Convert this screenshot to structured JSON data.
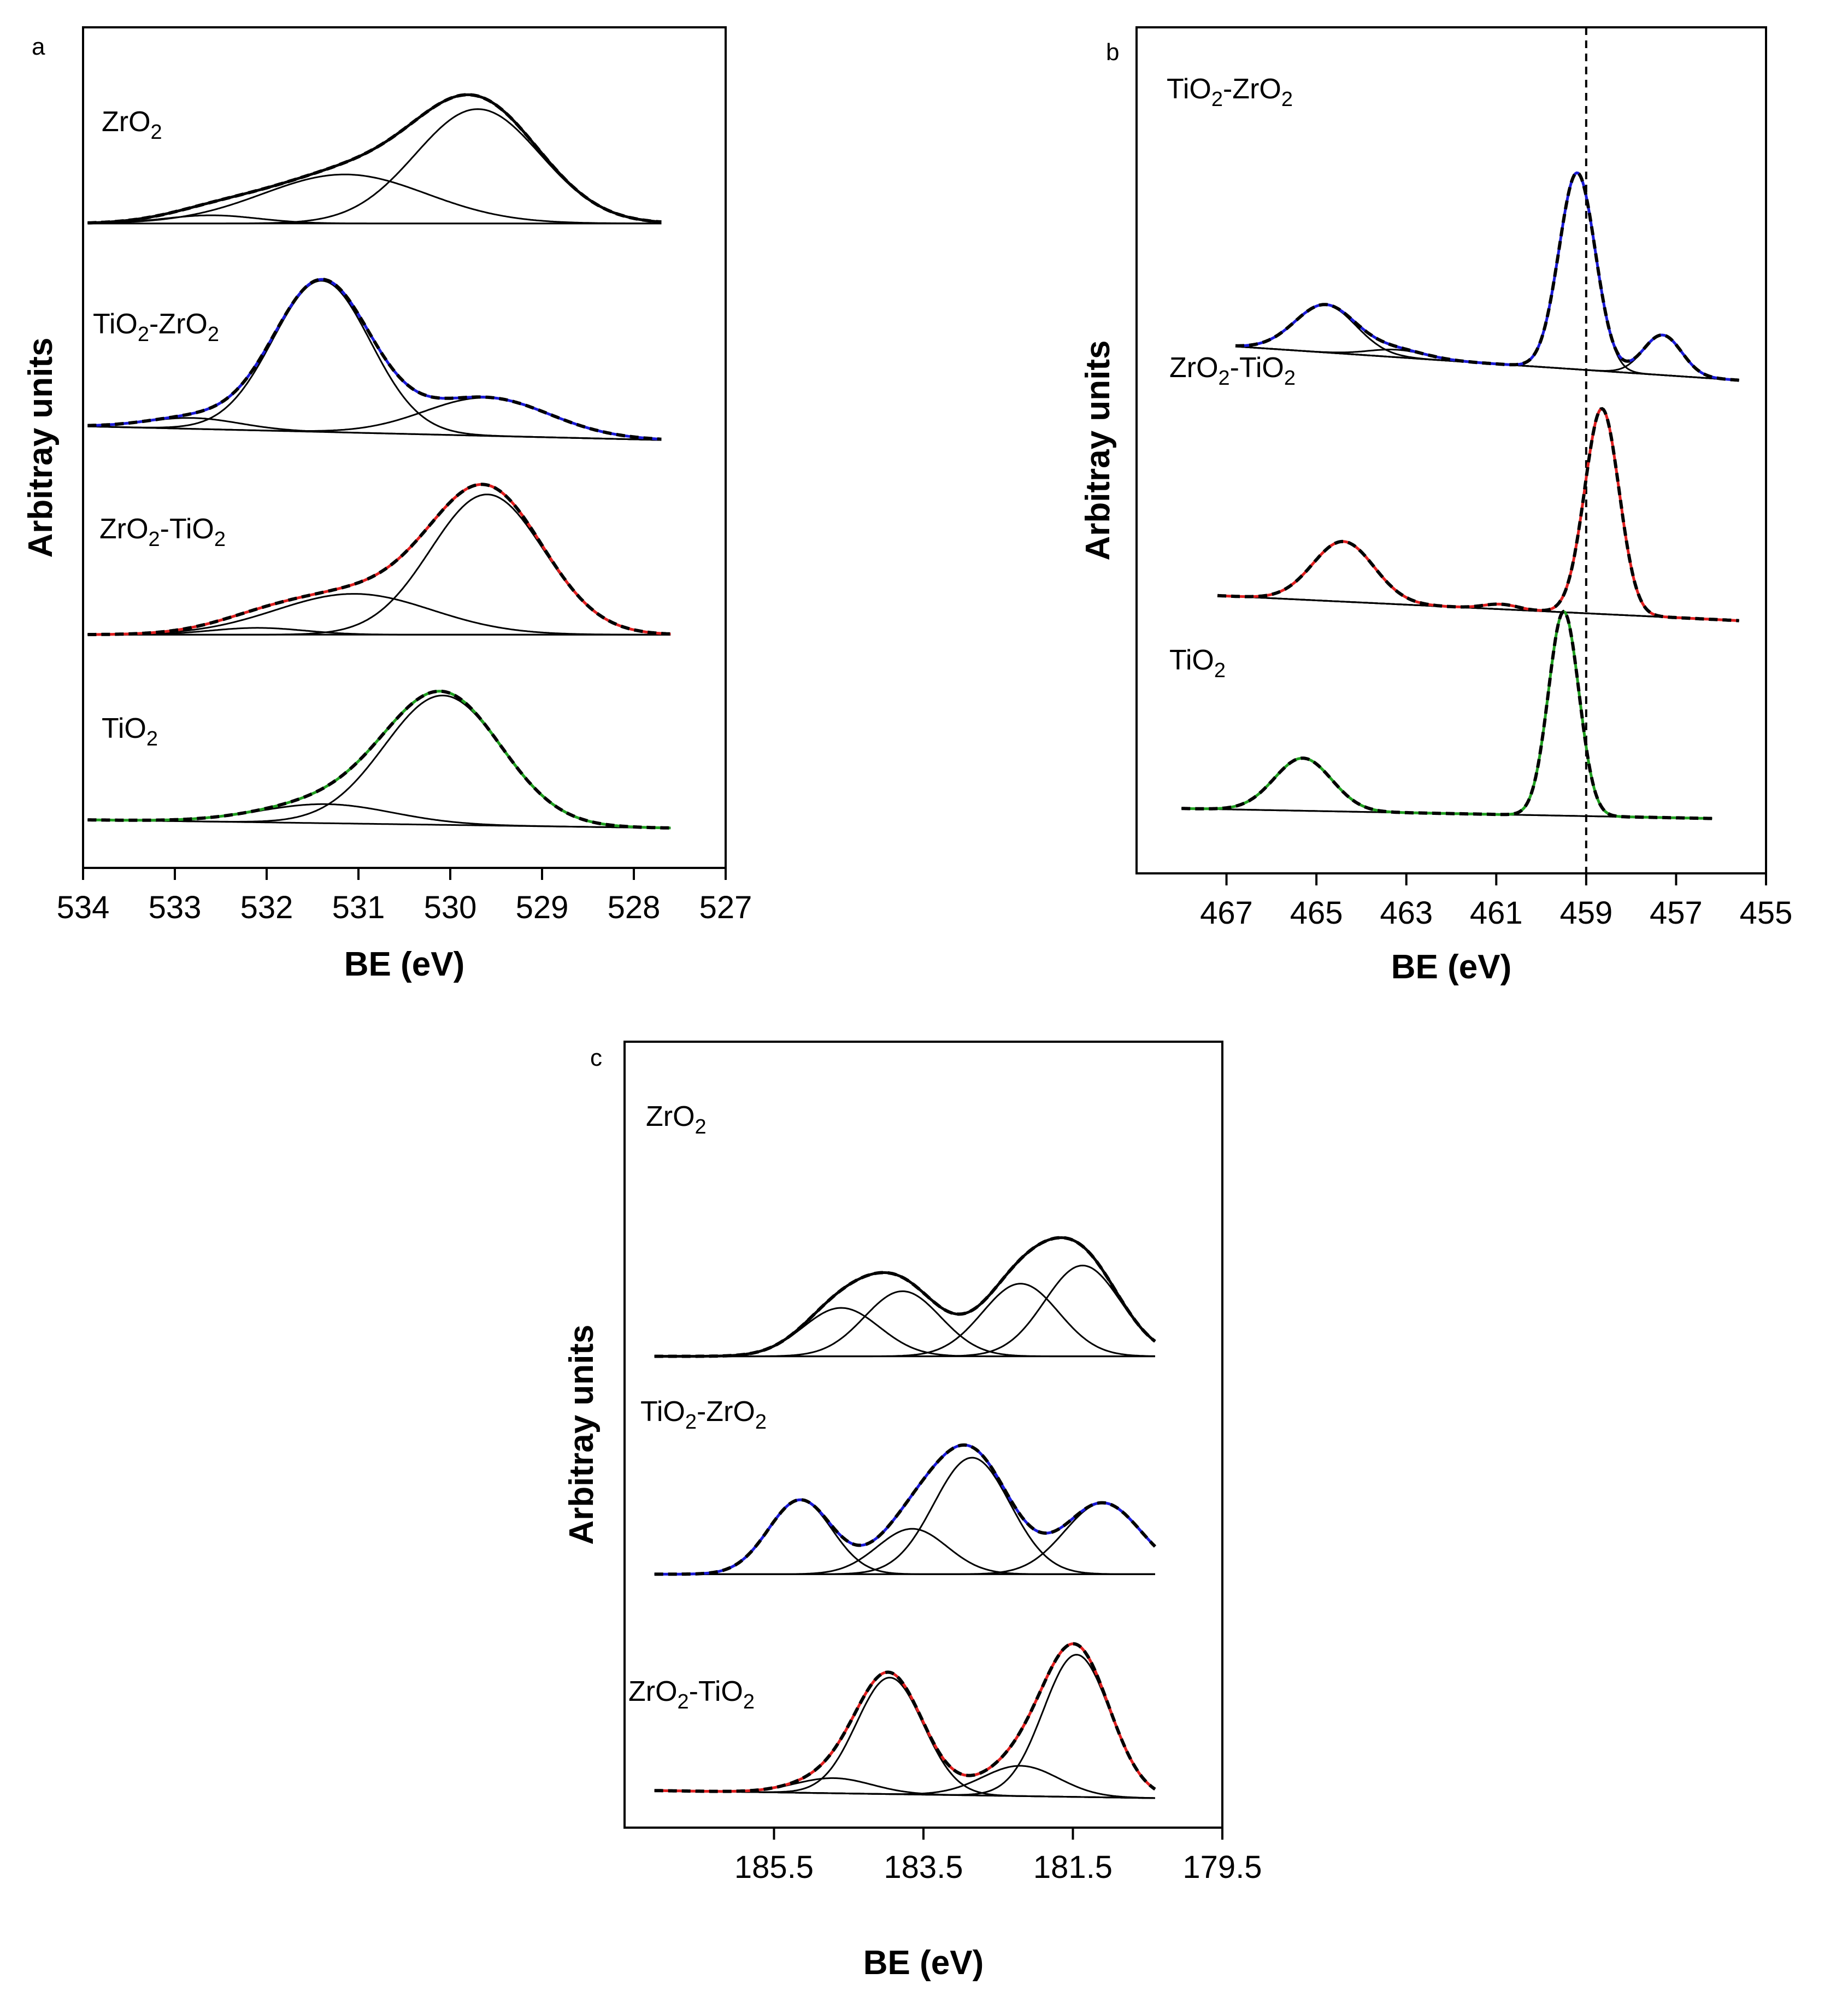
{
  "chart_data": [
    {
      "type": "line",
      "panel_label": "a",
      "xlabel": "BE (eV)",
      "ylabel": "Arbitray units",
      "xlim": [
        534,
        527
      ],
      "x_reversed": true,
      "x_ticks": [
        534,
        533,
        532,
        531,
        530,
        529,
        528,
        527
      ],
      "y_ticks": false,
      "grid": false,
      "legend": "none",
      "colors": {
        "fit": "#000000",
        "ZrO2": "#000000",
        "TiO2-ZrO2": "#1a1ad8",
        "ZrO2-TiO2": "#e01f1f",
        "TiO2": "#20a020"
      },
      "samples": [
        {
          "name": "ZrO2",
          "label_main": "ZrO",
          "label_sub": "2",
          "label_tail": "",
          "exp_color": "#000000",
          "range": [
            533.95,
            527.7
          ],
          "offset": 4.52,
          "baseline": [
            0,
            0
          ],
          "components": [
            {
              "center": 529.7,
              "height": 0.84,
              "fwhm": 1.6
            },
            {
              "center": 531.15,
              "height": 0.36,
              "fwhm": 2.1
            },
            {
              "center": 532.6,
              "height": 0.06,
              "fwhm": 1.2
            }
          ]
        },
        {
          "name": "TiO2-ZrO2",
          "label_main": "TiO",
          "label_sub": "2",
          "label_tail": "-ZrO",
          "label_sub2": "2",
          "exp_color": "#1a1ad8",
          "range": [
            533.95,
            527.7
          ],
          "offset": 3.03,
          "baseline": [
            0,
            -0.1
          ],
          "components": [
            {
              "center": 531.4,
              "height": 1.11,
              "fwhm": 1.25
            },
            {
              "center": 529.6,
              "height": 0.28,
              "fwhm": 1.6
            },
            {
              "center": 532.8,
              "height": 0.08,
              "fwhm": 1.2
            }
          ]
        },
        {
          "name": "ZrO2-TiO2",
          "label_main": "ZrO",
          "label_sub": "2",
          "label_tail": "-TiO",
          "label_sub2": "2",
          "exp_color": "#e01f1f",
          "range": [
            533.95,
            527.6
          ],
          "offset": 1.5,
          "baseline": [
            0,
            0
          ],
          "components": [
            {
              "center": 529.6,
              "height": 1.03,
              "fwhm": 1.45
            },
            {
              "center": 531.05,
              "height": 0.3,
              "fwhm": 2.0
            },
            {
              "center": 532.1,
              "height": 0.05,
              "fwhm": 1.2
            }
          ]
        },
        {
          "name": "TiO2",
          "label_main": "TiO",
          "label_sub": "2",
          "label_tail": "",
          "exp_color": "#20a020",
          "range": [
            533.95,
            527.6
          ],
          "offset": 0.08,
          "baseline": [
            0.06,
            0
          ],
          "components": [
            {
              "center": 530.08,
              "height": 0.95,
              "fwhm": 1.5
            },
            {
              "center": 531.35,
              "height": 0.14,
              "fwhm": 1.7
            }
          ]
        }
      ]
    },
    {
      "type": "line",
      "panel_label": "b",
      "xlabel": "BE (eV)",
      "ylabel": "Arbitray units",
      "xlim": [
        469,
        455
      ],
      "x_reversed": true,
      "x_ticks": [
        467,
        465,
        463,
        461,
        459,
        457,
        455
      ],
      "y_ticks": false,
      "grid": false,
      "legend": "none",
      "reference_line": {
        "x": 459.0,
        "style": "dashed"
      },
      "colors": {
        "fit": "#000000",
        "TiO2-ZrO2": "#1a1ad8",
        "ZrO2-TiO2": "#e01f1f",
        "TiO2": "#20a020"
      },
      "samples": [
        {
          "name": "TiO2-ZrO2",
          "label_main": "TiO",
          "label_sub": "2",
          "label_tail": "-ZrO",
          "label_sub2": "2",
          "exp_color": "#1a1ad8",
          "range": [
            466.8,
            455.6
          ],
          "offset": 3.97,
          "baseline": [
            0.02,
            -0.25
          ],
          "components": [
            {
              "center": 459.2,
              "height": 1.57,
              "fwhm": 0.95
            },
            {
              "center": 464.8,
              "height": 0.38,
              "fwhm": 1.6
            },
            {
              "center": 457.3,
              "height": 0.32,
              "fwhm": 1.0
            },
            {
              "center": 463.2,
              "height": 0.06,
              "fwhm": 1.5
            }
          ]
        },
        {
          "name": "ZrO2-TiO2",
          "label_main": "ZrO",
          "label_sub": "2",
          "label_tail": "-TiO",
          "label_sub2": "2",
          "exp_color": "#e01f1f",
          "range": [
            467.2,
            455.6
          ],
          "offset": 2.0,
          "baseline": [
            0,
            -0.2
          ],
          "components": [
            {
              "center": 458.65,
              "height": 1.64,
              "fwhm": 0.9
            },
            {
              "center": 464.4,
              "height": 0.48,
              "fwhm": 1.6
            },
            {
              "center": 460.9,
              "height": 0.04,
              "fwhm": 0.9
            }
          ]
        },
        {
          "name": "TiO2",
          "label_main": "TiO",
          "label_sub": "2",
          "label_tail": "",
          "exp_color": "#20a020",
          "range": [
            468.0,
            456.2
          ],
          "offset": 0.3,
          "baseline": [
            0,
            -0.08
          ],
          "components": [
            {
              "center": 459.5,
              "height": 1.63,
              "fwhm": 0.8
            },
            {
              "center": 465.3,
              "height": 0.42,
              "fwhm": 1.5
            }
          ]
        }
      ]
    },
    {
      "type": "line",
      "panel_label": "c",
      "xlabel": "BE (eV)",
      "ylabel": "Arbitray units",
      "xlim": [
        187.5,
        179.5
      ],
      "x_reversed": true,
      "x_ticks": [
        185.5,
        183.5,
        181.5,
        179.5
      ],
      "y_ticks": false,
      "grid": false,
      "legend": "none",
      "colors": {
        "fit": "#000000",
        "ZrO2": "#000000",
        "TiO2-ZrO2": "#1a1ad8",
        "ZrO2-TiO2": "#e01f1f"
      },
      "samples": [
        {
          "name": "ZrO2",
          "label_main": "ZrO",
          "label_sub": "2",
          "label_tail": "",
          "exp_color": "#000000",
          "range": [
            187.1,
            180.4
          ],
          "offset": 2.92,
          "baseline": [
            0,
            0
          ],
          "components": [
            {
              "center": 181.37,
              "height": 0.6,
              "fwhm": 1.2
            },
            {
              "center": 182.2,
              "height": 0.48,
              "fwhm": 1.2
            },
            {
              "center": 183.78,
              "height": 0.43,
              "fwhm": 1.2
            },
            {
              "center": 184.6,
              "height": 0.32,
              "fwhm": 1.2
            }
          ]
        },
        {
          "name": "TiO2-ZrO2",
          "label_main": "TiO",
          "label_sub": "2",
          "label_tail": "-ZrO",
          "label_sub2": "2",
          "exp_color": "#1a1ad8",
          "range": [
            187.1,
            180.4
          ],
          "offset": 1.48,
          "baseline": [
            0,
            0
          ],
          "components": [
            {
              "center": 182.85,
              "height": 0.77,
              "fwhm": 1.2
            },
            {
              "center": 181.1,
              "height": 0.47,
              "fwhm": 1.2
            },
            {
              "center": 185.15,
              "height": 0.49,
              "fwhm": 1.0
            },
            {
              "center": 183.65,
              "height": 0.3,
              "fwhm": 1.1
            }
          ]
        },
        {
          "name": "ZrO2-TiO2",
          "label_main": "ZrO",
          "label_sub": "2",
          "label_tail": "-TiO",
          "label_sub2": "2",
          "exp_color": "#e01f1f",
          "range": [
            187.1,
            180.4
          ],
          "offset": 0.0,
          "baseline": [
            0.05,
            0
          ],
          "components": [
            {
              "center": 181.45,
              "height": 0.94,
              "fwhm": 1.05
            },
            {
              "center": 183.95,
              "height": 0.77,
              "fwhm": 1.05
            },
            {
              "center": 182.2,
              "height": 0.2,
              "fwhm": 1.2
            },
            {
              "center": 184.7,
              "height": 0.1,
              "fwhm": 1.2
            }
          ]
        }
      ]
    }
  ]
}
